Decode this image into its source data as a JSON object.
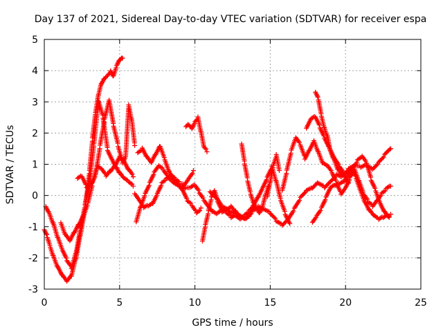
{
  "chart_data": {
    "type": "scatter",
    "title": "Day 137 of 2021, Sidereal Day-to-day VTEC variation (SDTVAR) for receiver espa",
    "xlabel": "GPS time / hours",
    "ylabel": "SDTVAR / TECUs",
    "xlim": [
      0,
      25
    ],
    "ylim": [
      -3,
      5
    ],
    "xticks": [
      "0",
      "5",
      "10",
      "15",
      "20",
      "25"
    ],
    "yticks": [
      "-3",
      "-2",
      "-1",
      "0",
      "1",
      "2",
      "3",
      "4",
      "5"
    ],
    "grid": true,
    "marker": "+",
    "series": [
      {
        "name": "SDTVAR",
        "color": "#ff0000",
        "traces": [
          {
            "x": [
              0.0,
              0.2,
              0.4,
              0.6,
              0.9,
              1.2,
              1.5,
              1.8,
              2.1,
              2.4,
              2.7,
              3.0,
              3.2,
              3.4,
              3.6,
              3.8,
              4.0,
              4.2,
              4.4,
              4.6,
              4.8,
              5.0,
              5.2
            ],
            "y": [
              -1.1,
              -1.3,
              -1.6,
              -1.9,
              -2.3,
              -2.6,
              -2.8,
              -2.6,
              -2.0,
              -1.2,
              -0.4,
              0.8,
              1.8,
              2.6,
              3.2,
              3.6,
              3.8,
              3.9,
              4.0,
              3.8,
              4.1,
              4.3,
              4.4
            ]
          },
          {
            "x": [
              0.1,
              0.3,
              0.6,
              0.9,
              1.2,
              1.5,
              1.8,
              2.1,
              2.4,
              2.7,
              3.0,
              3.3,
              3.6,
              3.9,
              4.2,
              4.5,
              4.8,
              5.0,
              5.3,
              5.6,
              5.9
            ],
            "y": [
              -0.3,
              -0.5,
              -0.9,
              -1.4,
              -1.8,
              -2.1,
              -2.3,
              -1.8,
              -1.0,
              -0.3,
              0.4,
              1.6,
              3.0,
              2.5,
              1.5,
              1.2,
              0.9,
              0.7,
              0.5,
              0.4,
              0.3
            ]
          },
          {
            "x": [
              1.1,
              1.4,
              1.7,
              2.0,
              2.3,
              2.6,
              2.9,
              3.2,
              3.5,
              3.8,
              4.1,
              4.4,
              4.7,
              5.0,
              5.3,
              5.6,
              5.9
            ],
            "y": [
              -0.9,
              -1.3,
              -1.5,
              -1.2,
              -0.9,
              -0.6,
              -0.2,
              0.4,
              0.9,
              0.8,
              0.6,
              0.8,
              1.0,
              1.3,
              1.1,
              0.8,
              0.6
            ]
          },
          {
            "x": [
              2.2,
              2.5,
              2.8,
              3.1,
              3.4,
              3.7,
              4.0,
              4.3,
              4.6,
              4.9,
              5.2,
              5.4,
              5.6,
              5.8,
              6.0
            ],
            "y": [
              0.5,
              0.6,
              0.3,
              0.4,
              0.7,
              1.6,
              2.4,
              3.0,
              2.2,
              1.6,
              1.1,
              1.3,
              2.9,
              2.4,
              1.6
            ]
          },
          {
            "x": [
              6.1,
              6.4,
              6.7,
              7.0,
              7.3,
              7.6,
              7.9,
              8.2,
              8.5,
              8.8,
              9.1,
              9.4,
              9.7,
              10.0,
              10.3,
              10.6,
              10.9,
              11.2,
              11.5,
              11.8,
              12.1,
              12.4,
              12.7,
              13.0,
              13.3,
              13.6,
              13.9
            ],
            "y": [
              -0.8,
              -0.3,
              0.1,
              0.4,
              0.7,
              0.9,
              0.8,
              0.6,
              0.5,
              0.4,
              0.3,
              0.2,
              0.2,
              0.3,
              0.1,
              -0.1,
              -0.3,
              -0.5,
              -0.6,
              -0.5,
              -0.6,
              -0.7,
              -0.6,
              -0.7,
              -0.6,
              -0.5,
              -0.4
            ]
          },
          {
            "x": [
              6.2,
              6.5,
              6.8,
              7.1,
              7.4,
              7.7,
              8.0,
              8.3,
              8.6,
              8.9,
              9.2,
              9.5,
              9.8,
              10.1,
              10.4
            ],
            "y": [
              1.4,
              1.5,
              1.2,
              1.0,
              1.3,
              1.6,
              1.2,
              0.8,
              0.5,
              0.3,
              0.1,
              -0.2,
              -0.3,
              -0.5,
              -0.4
            ]
          },
          {
            "x": [
              6.0,
              6.3,
              6.6,
              6.9,
              7.2,
              7.5,
              7.8,
              8.1,
              8.4,
              8.7,
              9.0,
              9.3,
              9.6,
              9.9
            ],
            "y": [
              0.0,
              -0.2,
              -0.4,
              -0.3,
              -0.2,
              0.1,
              0.4,
              0.5,
              0.6,
              0.5,
              0.4,
              0.4,
              0.6,
              0.8
            ]
          },
          {
            "x": [
              9.4,
              9.6,
              9.8,
              10.0,
              10.2,
              10.4,
              10.6,
              10.8
            ],
            "y": [
              2.2,
              2.3,
              2.2,
              2.4,
              2.5,
              2.0,
              1.5,
              1.4
            ]
          },
          {
            "x": [
              10.5,
              10.7,
              10.9,
              11.1,
              11.3,
              11.5,
              11.8,
              12.1,
              12.4,
              12.7,
              13.0,
              13.3,
              13.6,
              13.9,
              14.2,
              14.5,
              14.8,
              15.1,
              15.4,
              15.7,
              16.0,
              16.3
            ],
            "y": [
              -1.4,
              -0.9,
              -0.5,
              -0.1,
              0.1,
              -0.2,
              -0.5,
              -0.4,
              -0.3,
              -0.5,
              -0.7,
              -0.8,
              -0.7,
              -0.3,
              0.0,
              0.3,
              0.6,
              0.9,
              0.4,
              -0.2,
              -0.6,
              -0.9
            ]
          },
          {
            "x": [
              11.0,
              11.4,
              11.8,
              12.2,
              12.6,
              13.0,
              13.4,
              13.8,
              14.2,
              14.6,
              15.0,
              15.4,
              15.8,
              16.2,
              16.6,
              17.0,
              17.4,
              17.8,
              18.2,
              18.6,
              19.0,
              19.4,
              19.8,
              20.2,
              20.6,
              21.0,
              21.4,
              21.8,
              22.2,
              22.6,
              23.0
            ],
            "y": [
              0.1,
              -0.1,
              -0.4,
              -0.5,
              -0.6,
              -0.6,
              -0.7,
              -0.5,
              -0.4,
              -0.5,
              -0.6,
              -0.8,
              -0.9,
              -0.7,
              -0.4,
              -0.1,
              0.1,
              0.2,
              0.4,
              0.3,
              0.5,
              0.7,
              0.6,
              0.8,
              0.9,
              0.9,
              1.0,
              0.9,
              1.1,
              1.3,
              1.5
            ]
          },
          {
            "x": [
              13.1,
              13.3,
              13.5,
              13.7,
              13.9,
              14.1,
              14.3,
              14.5,
              14.7,
              14.9
            ],
            "y": [
              1.6,
              1.0,
              0.5,
              0.1,
              -0.2,
              -0.4,
              -0.6,
              -0.4,
              0.0,
              0.3
            ]
          },
          {
            "x": [
              14.8,
              15.0,
              15.2,
              15.4,
              15.6
            ],
            "y": [
              0.0,
              0.5,
              1.0,
              1.3,
              0.8
            ]
          },
          {
            "x": [
              15.8,
              16.1,
              16.4,
              16.7,
              17.0,
              17.3,
              17.6,
              17.9,
              18.2,
              18.5,
              18.8,
              19.1,
              19.4,
              19.7,
              20.0,
              20.3,
              20.6,
              20.9,
              21.2,
              21.5,
              21.8,
              22.1,
              22.4,
              22.7,
              23.0
            ],
            "y": [
              0.2,
              0.8,
              1.4,
              1.8,
              1.6,
              1.2,
              1.5,
              1.8,
              1.4,
              1.0,
              0.9,
              0.7,
              0.4,
              0.1,
              0.3,
              0.6,
              0.8,
              0.4,
              0.0,
              -0.2,
              -0.3,
              -0.1,
              0.1,
              0.2,
              0.3
            ]
          },
          {
            "x": [
              17.4,
              17.7,
              18.0,
              18.3,
              18.6,
              18.9,
              19.2,
              19.5,
              19.8,
              20.1,
              20.4,
              20.7,
              21.0,
              21.3,
              21.6,
              21.9,
              22.2,
              22.5,
              22.8,
              23.0
            ],
            "y": [
              2.1,
              2.4,
              2.5,
              2.2,
              1.9,
              1.6,
              1.2,
              0.8,
              0.6,
              0.7,
              0.9,
              0.6,
              0.2,
              -0.2,
              -0.5,
              -0.7,
              -0.8,
              -0.7,
              -0.6,
              -0.6
            ]
          },
          {
            "x": [
              18.0,
              18.2,
              18.4,
              18.6,
              18.8,
              19.0,
              19.3,
              19.6,
              19.9,
              20.2
            ],
            "y": [
              3.3,
              3.1,
              2.6,
              2.2,
              1.9,
              1.4,
              1.1,
              0.9,
              0.7,
              0.4
            ]
          },
          {
            "x": [
              17.8,
              18.1,
              18.4,
              18.7,
              19.0,
              19.3,
              19.6,
              19.9,
              20.2,
              20.5,
              20.8,
              21.1,
              21.4,
              21.7,
              22.0,
              22.3,
              22.6,
              22.9
            ],
            "y": [
              -0.8,
              -0.6,
              -0.4,
              -0.1,
              0.2,
              0.3,
              0.4,
              0.5,
              0.7,
              0.9,
              1.1,
              1.2,
              1.0,
              0.5,
              0.2,
              -0.2,
              -0.5,
              -0.7
            ]
          }
        ]
      }
    ]
  }
}
